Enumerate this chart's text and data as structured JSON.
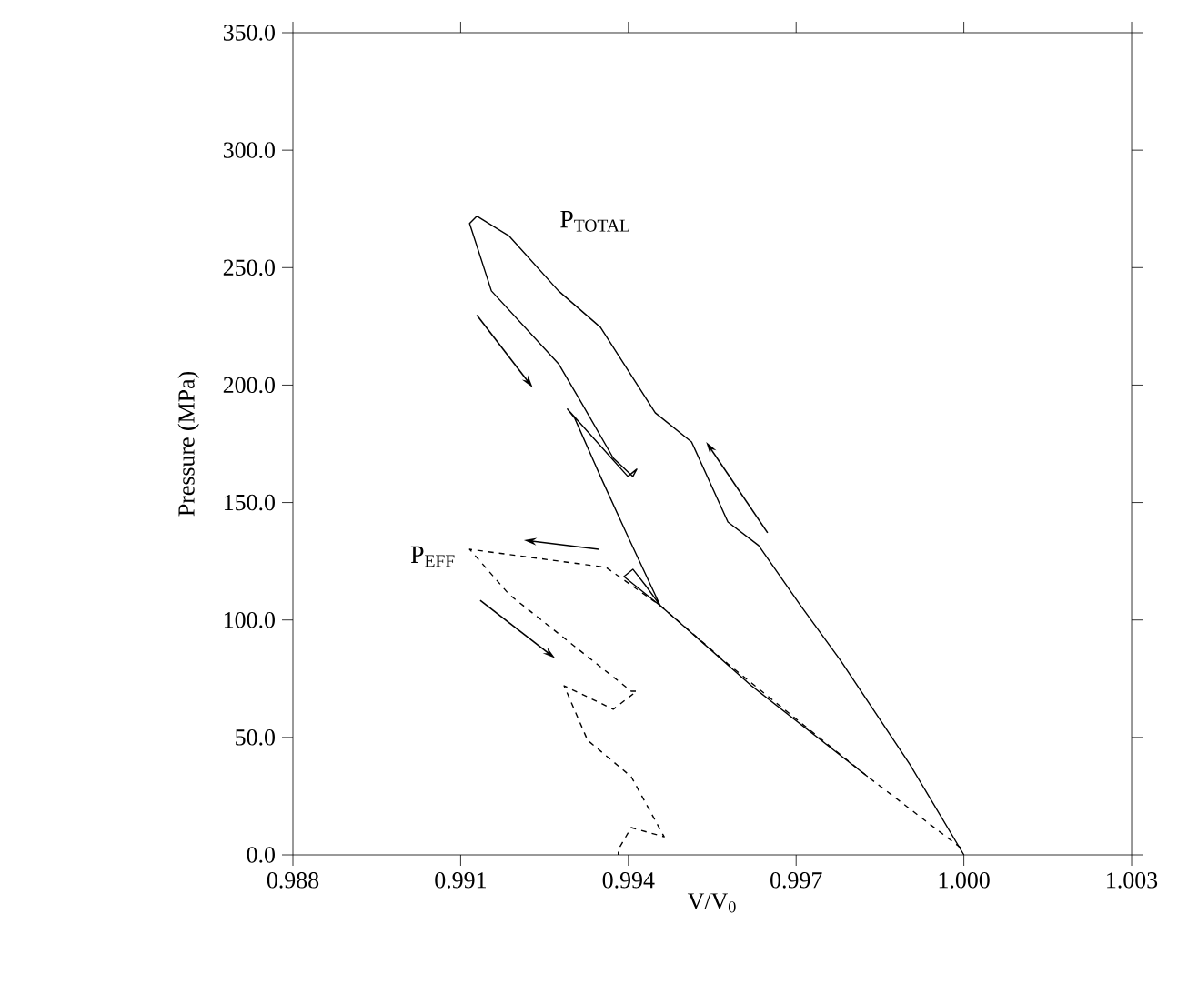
{
  "chart_data": {
    "type": "line",
    "xlabel": "V/V$_{0}$",
    "ylabel": "Pressure (MPa)",
    "xlim": [
      0.988,
      1.003
    ],
    "ylim": [
      0,
      350
    ],
    "xticks": [
      {
        "value": 0.988,
        "label": "0.988"
      },
      {
        "value": 0.991,
        "label": "0.991"
      },
      {
        "value": 0.994,
        "label": "0.994"
      },
      {
        "value": 0.997,
        "label": "0.997"
      },
      {
        "value": 1.0,
        "label": "1.000"
      },
      {
        "value": 1.003,
        "label": "1.003"
      }
    ],
    "yticks": [
      {
        "value": 0,
        "label": "0.0"
      },
      {
        "value": 50,
        "label": "50.0"
      },
      {
        "value": 100,
        "label": "100.0"
      },
      {
        "value": 150,
        "label": "150.0"
      },
      {
        "value": 200,
        "label": "200.0"
      },
      {
        "value": 250,
        "label": "250.0"
      },
      {
        "value": 300,
        "label": "300.0"
      },
      {
        "value": 350,
        "label": "350.0"
      }
    ],
    "grid": false,
    "marker": "none",
    "series": [
      {
        "name": "P$_{TOTAL}$",
        "color": "#000000",
        "line_style": "solid",
        "x": [
          1.0,
          0.99903,
          0.99779,
          0.99708,
          0.99633,
          0.99578,
          0.99513,
          0.99448,
          0.9935,
          0.99275,
          0.99187,
          0.99129,
          0.99116,
          0.99155,
          0.99275,
          0.99317,
          0.99373,
          0.99408,
          0.99415,
          0.99399,
          0.99291,
          0.99304,
          0.9935,
          0.99399,
          0.99457,
          0.99392,
          0.99408,
          0.99431,
          0.99457,
          0.99513,
          0.9962,
          0.99828
        ],
        "values": [
          0,
          38.7,
          82.9,
          106.1,
          131.7,
          141.7,
          175.8,
          188.2,
          224.6,
          240.1,
          263.4,
          271.9,
          268.8,
          240.1,
          209.1,
          192.1,
          168.9,
          161.1,
          164.2,
          161.1,
          189.8,
          185.9,
          161.1,
          135.6,
          106.1,
          118.5,
          121.6,
          114.6,
          106.1,
          94.5,
          72.0,
          33.3
        ]
      },
      {
        "name": "P$_{EFF}$",
        "color": "#000000",
        "line_style": "dashed",
        "x": [
          0.99994,
          0.99828,
          0.99578,
          0.99457,
          0.9936,
          0.99116,
          0.99187,
          0.99405,
          0.99415,
          0.99373,
          0.99285,
          0.99327,
          0.99405,
          0.99464,
          0.99405,
          0.99382,
          0.99382
        ],
        "values": [
          3.1,
          33.3,
          81.3,
          106.1,
          122.4,
          130.1,
          110.8,
          69.7,
          69.7,
          62.0,
          72.0,
          48.8,
          33.3,
          7.7,
          11.6,
          2.3,
          0
        ]
      }
    ]
  }
}
